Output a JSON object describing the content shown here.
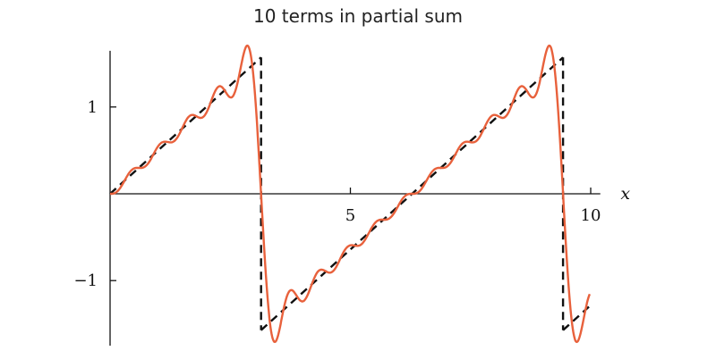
{
  "chart_data": {
    "type": "line",
    "title": "10 terms in partial sum",
    "xlabel": "x",
    "ylabel": "",
    "xlim": [
      0,
      10.2
    ],
    "ylim": [
      -1.75,
      1.75
    ],
    "x_ticks": [
      5,
      10
    ],
    "x_tick_labels": [
      "5",
      "10"
    ],
    "y_ticks": [
      1,
      -1
    ],
    "y_tick_labels": [
      "1",
      "−1"
    ],
    "grid": false,
    "legend": "none",
    "series": [
      {
        "kind": "fourier-partial-sum",
        "terms": 10,
        "formula": "2 * sum_{n=1..10} (-1)^(n+1) sin(n x) / n",
        "x_range": [
          0,
          9.98
        ],
        "color": "#e8613c",
        "style": "solid"
      },
      {
        "kind": "sawtooth",
        "segments": [
          {
            "x": [
              0,
              3.1416
            ],
            "y": [
              0,
              3.1416
            ]
          },
          {
            "x": [
              3.1416,
              3.1416
            ],
            "y": [
              3.1416,
              -3.1416
            ]
          },
          {
            "x": [
              3.1416,
              9.4248
            ],
            "y": [
              -3.1416,
              3.1416
            ]
          },
          {
            "x": [
              9.4248,
              9.4248
            ],
            "y": [
              3.1416,
              -3.1416
            ]
          },
          {
            "x": [
              9.4248,
              10.0
            ],
            "y": [
              -3.1416,
              -2.566
            ]
          }
        ],
        "y_scale": 0.5,
        "color": "#111111",
        "style": "dashed"
      }
    ]
  }
}
